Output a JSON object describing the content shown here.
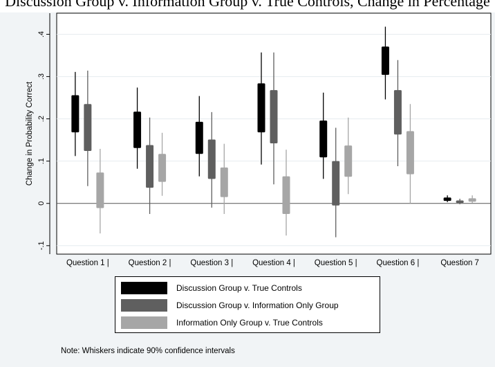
{
  "top_caption": "Discussion Group v. Information Group v. True Controls, Change in Percentage",
  "chart_data": {
    "type": "box",
    "ylabel": "Change in Probability Correct",
    "xlabel": "",
    "ylim": [
      -0.12,
      0.45
    ],
    "yticks": [
      -0.1,
      0,
      0.1,
      0.2,
      0.3,
      0.4
    ],
    "ytick_labels": [
      "-.1",
      "0",
      ".1",
      ".2",
      ".3",
      ".4"
    ],
    "grid": true,
    "legend_position": "bottom",
    "categories": [
      "Question 1 |",
      "Question 2 |",
      "Question 3 |",
      "Question 4 |",
      "Question 5 |",
      "Question 6 |",
      "Question 7"
    ],
    "series": [
      {
        "name": "Discussion Group v. True Controls",
        "color": "#000000",
        "boxes": [
          {
            "whisker_low": 0.112,
            "q1": 0.168,
            "q3": 0.256,
            "whisker_high": 0.311
          },
          {
            "whisker_low": 0.082,
            "q1": 0.131,
            "q3": 0.217,
            "whisker_high": 0.274
          },
          {
            "whisker_low": 0.064,
            "q1": 0.117,
            "q3": 0.193,
            "whisker_high": 0.254
          },
          {
            "whisker_low": 0.092,
            "q1": 0.168,
            "q3": 0.284,
            "whisker_high": 0.357
          },
          {
            "whisker_low": 0.058,
            "q1": 0.109,
            "q3": 0.196,
            "whisker_high": 0.262
          },
          {
            "whisker_low": 0.246,
            "q1": 0.304,
            "q3": 0.371,
            "whisker_high": 0.418
          },
          {
            "whisker_low": 0.003,
            "q1": 0.006,
            "q3": 0.014,
            "whisker_high": 0.019
          }
        ]
      },
      {
        "name": "Discussion Group v. Information Only Group",
        "color": "#5f5f5f",
        "boxes": [
          {
            "whisker_low": 0.041,
            "q1": 0.124,
            "q3": 0.235,
            "whisker_high": 0.314
          },
          {
            "whisker_low": -0.025,
            "q1": 0.037,
            "q3": 0.138,
            "whisker_high": 0.203
          },
          {
            "whisker_low": -0.01,
            "q1": 0.058,
            "q3": 0.151,
            "whisker_high": 0.216
          },
          {
            "whisker_low": 0.045,
            "q1": 0.142,
            "q3": 0.268,
            "whisker_high": 0.357
          },
          {
            "whisker_low": -0.08,
            "q1": -0.005,
            "q3": 0.1,
            "whisker_high": 0.179
          },
          {
            "whisker_low": 0.088,
            "q1": 0.163,
            "q3": 0.268,
            "whisker_high": 0.339
          },
          {
            "whisker_low": -0.002,
            "q1": 0.001,
            "q3": 0.007,
            "whisker_high": 0.011
          }
        ]
      },
      {
        "name": "Information Only Group v. True Controls",
        "color": "#a6a6a6",
        "boxes": [
          {
            "whisker_low": -0.071,
            "q1": -0.011,
            "q3": 0.073,
            "whisker_high": 0.129
          },
          {
            "whisker_low": 0.018,
            "q1": 0.051,
            "q3": 0.117,
            "whisker_high": 0.167
          },
          {
            "whisker_low": -0.025,
            "q1": 0.015,
            "q3": 0.085,
            "whisker_high": 0.141
          },
          {
            "whisker_low": -0.076,
            "q1": -0.025,
            "q3": 0.064,
            "whisker_high": 0.127
          },
          {
            "whisker_low": 0.022,
            "q1": 0.063,
            "q3": 0.137,
            "whisker_high": 0.203
          },
          {
            "whisker_low": 0.0,
            "q1": 0.069,
            "q3": 0.171,
            "whisker_high": 0.235
          },
          {
            "whisker_low": 0.001,
            "q1": 0.004,
            "q3": 0.012,
            "whisker_high": 0.019
          }
        ]
      }
    ],
    "note": "Note: Whiskers indicate 90% confidence intervals"
  }
}
